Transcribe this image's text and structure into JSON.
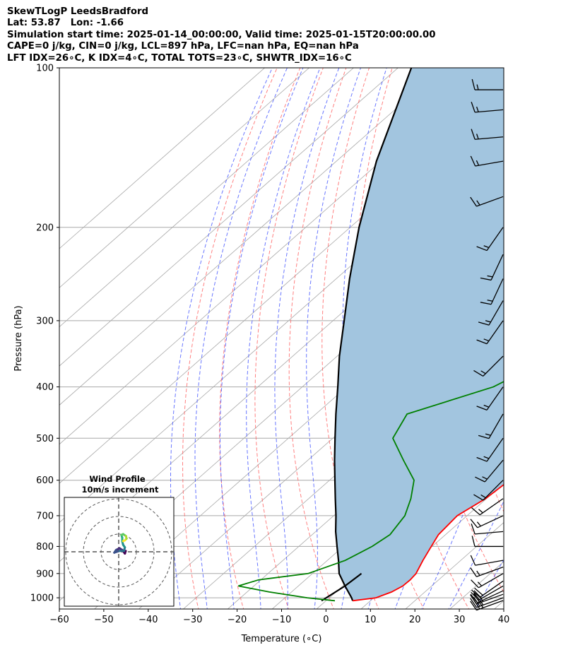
{
  "header": {
    "title_lines": [
      "SkewTLogP LeedsBradford",
      "Lat: 53.87   Lon: -1.66",
      "Simulation start time: 2025-01-14_00:00:00, Valid time: 2025-01-15T20:00:00.00",
      "CAPE=0 j/kg, CIN=0 j/kg, LCL=897 hPa, LFC=nan hPa, EQ=nan hPa",
      "LFT IDX=26∘C, K IDX=4∘C, TOTAL TOTS=23∘C, SHWTR_IDX=16∘C"
    ]
  },
  "colors": {
    "temperature": "#ff0000",
    "dewpoint": "#008000",
    "parcel": "#000000",
    "fill": "#a2c5df",
    "dry_adiabats": "#ff6060",
    "moist_adiabats": "#4455ff",
    "isotherms": "#a8a8a8",
    "barbs": "#000000"
  },
  "chart_data": [
    {
      "type": "line",
      "chart_kind": "skew-T log-P diagram",
      "xlabel": "Temperature (∘C)",
      "ylabel": "Pressure (hPa)",
      "xlim": [
        -60,
        40
      ],
      "ylim": [
        1050,
        100
      ],
      "y_scale": "log",
      "x_ticks": [
        -60,
        -50,
        -40,
        -30,
        -20,
        -10,
        0,
        10,
        20,
        30,
        40
      ],
      "x_tick_labels": [
        "−60",
        "−50",
        "−40",
        "−30",
        "−20",
        "−10",
        "0",
        "10",
        "20",
        "30",
        "40"
      ],
      "y_ticks": [
        100,
        200,
        300,
        400,
        500,
        600,
        700,
        800,
        900,
        1000
      ],
      "y_tick_labels": [
        "100",
        "200",
        "300",
        "400",
        "500",
        "600",
        "700",
        "800",
        "900",
        "1000"
      ],
      "grid": true,
      "series": [
        {
          "key": "temperature",
          "points": [
            [
              1013,
              6
            ],
            [
              1000,
              10.5
            ],
            [
              975,
              12.5
            ],
            [
              950,
              13.5
            ],
            [
              925,
              13.6
            ],
            [
              900,
              13.3
            ],
            [
              850,
              11.5
            ],
            [
              800,
              9.8
            ],
            [
              760,
              8.4
            ],
            [
              700,
              7.8
            ],
            [
              650,
              9.8
            ],
            [
              600,
              10.5
            ],
            [
              550,
              10.5
            ],
            [
              500,
              7.5
            ],
            [
              450,
              4.0
            ],
            [
              400,
              -1.0
            ],
            [
              360,
              -5.0
            ],
            [
              320,
              -7.5
            ],
            [
              280,
              -12.5
            ],
            [
              250,
              -16.0
            ],
            [
              230,
              -18.0
            ],
            [
              210,
              -18.5
            ],
            [
              200,
              -18.5
            ],
            [
              180,
              -17.5
            ],
            [
              160,
              -14.5
            ],
            [
              140,
              -9.5
            ],
            [
              130,
              -6.0
            ],
            [
              120,
              -4.0
            ],
            [
              110,
              -2.0
            ],
            [
              100,
              0.0
            ]
          ]
        },
        {
          "key": "dewpoint",
          "points": [
            [
              1013,
              2
            ],
            [
              1000,
              -5
            ],
            [
              975,
              -15
            ],
            [
              950,
              -23.5
            ],
            [
              925,
              -20.5
            ],
            [
              900,
              -11
            ],
            [
              850,
              -6
            ],
            [
              800,
              -3.5
            ],
            [
              760,
              -2.5
            ],
            [
              700,
              -4
            ],
            [
              650,
              -7
            ],
            [
              600,
              -11
            ],
            [
              550,
              -18.5
            ],
            [
              500,
              -26.5
            ],
            [
              450,
              -29.5
            ],
            [
              400,
              -17
            ],
            [
              360,
              -12.5
            ],
            [
              340,
              -13
            ],
            [
              320,
              -16
            ],
            [
              280,
              -22
            ],
            [
              250,
              -24.5
            ],
            [
              220,
              -28
            ],
            [
              200,
              -31
            ],
            [
              180,
              -35
            ],
            [
              170,
              -33
            ],
            [
              155,
              -24
            ],
            [
              145,
              -21
            ],
            [
              130,
              -22
            ],
            [
              115,
              -16
            ],
            [
              100,
              -5
            ]
          ]
        },
        {
          "key": "parcel",
          "points": [
            [
              1013,
              6
            ],
            [
              1000,
              5
            ],
            [
              950,
              0.5
            ],
            [
              900,
              -4.0
            ],
            [
              850,
              -7.5
            ],
            [
              800,
              -11.4
            ],
            [
              750,
              -15.5
            ],
            [
              700,
              -19.5
            ],
            [
              650,
              -24.0
            ],
            [
              600,
              -28.8
            ],
            [
              550,
              -34.0
            ],
            [
              500,
              -39.5
            ],
            [
              450,
              -45.5
            ],
            [
              400,
              -52.0
            ],
            [
              350,
              -59.5
            ],
            [
              300,
              -67.5
            ],
            [
              250,
              -77.0
            ],
            [
              200,
              -88.0
            ],
            [
              150,
              -101.0
            ],
            [
              100,
              -117.0
            ]
          ]
        },
        {
          "key": "surface-segment",
          "points": [
            [
              1013,
              -1
            ],
            [
              950,
              0.5
            ],
            [
              900,
              1.0
            ]
          ]
        }
      ],
      "wind_barbs": [
        {
          "p": 1012,
          "speed_kt": 25,
          "dir": 250
        },
        {
          "p": 1000,
          "speed_kt": 25,
          "dir": 250
        },
        {
          "p": 985,
          "speed_kt": 25,
          "dir": 250
        },
        {
          "p": 970,
          "speed_kt": 20,
          "dir": 245
        },
        {
          "p": 950,
          "speed_kt": 20,
          "dir": 240
        },
        {
          "p": 930,
          "speed_kt": 20,
          "dir": 235
        },
        {
          "p": 900,
          "speed_kt": 15,
          "dir": 240
        },
        {
          "p": 875,
          "speed_kt": 15,
          "dir": 250
        },
        {
          "p": 850,
          "speed_kt": 10,
          "dir": 260
        },
        {
          "p": 800,
          "speed_kt": 10,
          "dir": 270
        },
        {
          "p": 750,
          "speed_kt": 10,
          "dir": 265
        },
        {
          "p": 700,
          "speed_kt": 15,
          "dir": 245
        },
        {
          "p": 650,
          "speed_kt": 15,
          "dir": 235
        },
        {
          "p": 600,
          "speed_kt": 15,
          "dir": 225
        },
        {
          "p": 550,
          "speed_kt": 15,
          "dir": 220
        },
        {
          "p": 500,
          "speed_kt": 15,
          "dir": 215
        },
        {
          "p": 450,
          "speed_kt": 15,
          "dir": 210
        },
        {
          "p": 400,
          "speed_kt": 15,
          "dir": 215
        },
        {
          "p": 350,
          "speed_kt": 15,
          "dir": 225
        },
        {
          "p": 300,
          "speed_kt": 15,
          "dir": 215
        },
        {
          "p": 275,
          "speed_kt": 15,
          "dir": 210
        },
        {
          "p": 250,
          "speed_kt": 15,
          "dir": 205
        },
        {
          "p": 225,
          "speed_kt": 15,
          "dir": 205
        },
        {
          "p": 200,
          "speed_kt": 15,
          "dir": 215
        },
        {
          "p": 175,
          "speed_kt": 15,
          "dir": 250
        },
        {
          "p": 150,
          "speed_kt": 15,
          "dir": 260
        },
        {
          "p": 135,
          "speed_kt": 15,
          "dir": 265
        },
        {
          "p": 120,
          "speed_kt": 15,
          "dir": 265
        },
        {
          "p": 110,
          "speed_kt": 15,
          "dir": 270
        }
      ]
    },
    {
      "type": "line",
      "chart_kind": "hodograph",
      "title": "Wind Profile",
      "subtitle": "10m/s increment",
      "ring_increment_ms": 10,
      "series": [
        {
          "key": "hodograph",
          "points": [
            [
              4.0,
              0.5
            ],
            [
              3.5,
              -1.0
            ],
            [
              2.0,
              1.0
            ],
            [
              0.5,
              2.0
            ],
            [
              -1.5,
              1.0
            ],
            [
              -2.5,
              -0.5
            ],
            [
              0.5,
              0.5
            ],
            [
              3.0,
              0.5
            ],
            [
              3.5,
              2.5
            ],
            [
              2.5,
              4.0
            ],
            [
              2.0,
              6.0
            ],
            [
              2.0,
              8.0
            ],
            [
              1.5,
              9.5
            ],
            [
              2.5,
              10.0
            ],
            [
              4.0,
              9.0
            ],
            [
              4.5,
              7.5
            ],
            [
              3.5,
              6.5
            ],
            [
              2.5,
              6.0
            ]
          ]
        }
      ]
    }
  ]
}
